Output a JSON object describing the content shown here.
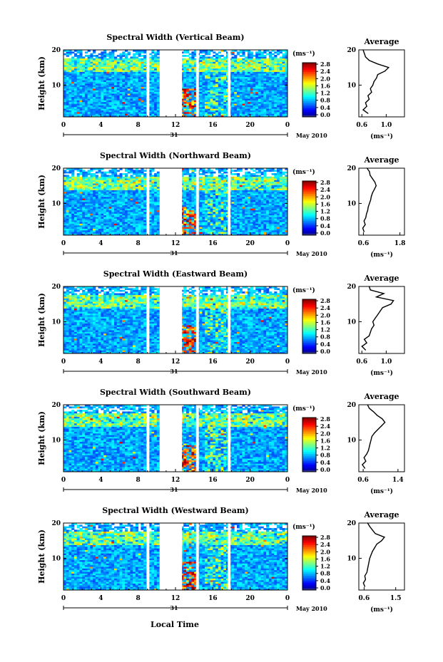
{
  "figure": {
    "xlabel": "Local Time",
    "date_label": "May 2010",
    "day_label": "31",
    "ylabel": "Height (km)",
    "colorbar_unit": "(ms⁻¹)",
    "profile_title": "Average",
    "profile_unit": "(ms⁻¹)"
  },
  "chart_data": [
    {
      "type": "heatmap",
      "title": "Spectral Width (Vertical Beam)",
      "xlabel": "Local Time",
      "ylabel": "Height (km)",
      "x_ticks": [
        "0",
        "4",
        "8",
        "12",
        "16",
        "20",
        "0"
      ],
      "xlim": [
        0,
        24
      ],
      "y_ticks": [
        "10",
        "20"
      ],
      "ylim": [
        1,
        20
      ],
      "colorbar": {
        "unit": "(ms⁻¹)",
        "ticks": [
          "0.0",
          "0.4",
          "0.8",
          "1.2",
          "1.6",
          "2.0",
          "2.4",
          "2.8"
        ],
        "range": [
          0,
          3.0
        ]
      },
      "data_gaps": [
        [
          8.9,
          9.2
        ],
        [
          10.3,
          12.7
        ],
        [
          14.2,
          14.5
        ],
        [
          17.6,
          17.9
        ]
      ],
      "profile": {
        "title": "Average",
        "unit": "(ms⁻¹)",
        "x_ticks": [
          "0.6",
          "1.0"
        ],
        "xlim": [
          0.55,
          1.3
        ],
        "heights": [
          2,
          3,
          4,
          5,
          6,
          7,
          8,
          9,
          10,
          11,
          12,
          13,
          14,
          15,
          16,
          17,
          18,
          19,
          20
        ],
        "values": [
          0.7,
          0.62,
          0.68,
          0.66,
          0.72,
          0.7,
          0.76,
          0.74,
          0.78,
          0.8,
          0.84,
          0.86,
          0.98,
          1.04,
          0.86,
          0.72,
          0.66,
          0.64,
          0.62
        ]
      }
    },
    {
      "type": "heatmap",
      "title": "Spectral Width (Northward Beam)",
      "xlabel": "Local Time",
      "ylabel": "Height (km)",
      "x_ticks": [
        "0",
        "4",
        "8",
        "12",
        "16",
        "20",
        "0"
      ],
      "xlim": [
        0,
        24
      ],
      "y_ticks": [
        "10",
        "20"
      ],
      "ylim": [
        1,
        20
      ],
      "colorbar": {
        "unit": "(ms⁻¹)",
        "ticks": [
          "0.0",
          "0.4",
          "0.8",
          "1.2",
          "1.6",
          "2.0",
          "2.4",
          "2.8"
        ],
        "range": [
          0,
          3.0
        ]
      },
      "data_gaps": [
        [
          8.9,
          9.2
        ],
        [
          10.3,
          12.7
        ],
        [
          14.2,
          14.5
        ],
        [
          17.6,
          17.9
        ]
      ],
      "profile": {
        "title": "Average",
        "unit": "(ms⁻¹)",
        "x_ticks": [
          "0.6",
          "1.8"
        ],
        "xlim": [
          0.45,
          1.95
        ],
        "heights": [
          2,
          3,
          4,
          5,
          6,
          7,
          8,
          9,
          10,
          11,
          12,
          13,
          14,
          15,
          16,
          17,
          18,
          19,
          20
        ],
        "values": [
          0.62,
          0.58,
          0.66,
          0.62,
          0.68,
          0.7,
          0.74,
          0.76,
          0.8,
          0.84,
          0.86,
          0.9,
          0.96,
          1.02,
          0.98,
          0.9,
          0.82,
          0.8,
          0.72
        ]
      }
    },
    {
      "type": "heatmap",
      "title": "Spectral Width (Eastward Beam)",
      "xlabel": "Local Time",
      "ylabel": "Height (km)",
      "x_ticks": [
        "0",
        "4",
        "8",
        "12",
        "16",
        "20",
        "0"
      ],
      "xlim": [
        0,
        24
      ],
      "y_ticks": [
        "10",
        "20"
      ],
      "ylim": [
        1,
        20
      ],
      "colorbar": {
        "unit": "(ms⁻¹)",
        "ticks": [
          "0.0",
          "0.4",
          "0.8",
          "1.2",
          "1.6",
          "2.0",
          "2.4",
          "2.8"
        ],
        "range": [
          0,
          3.0
        ]
      },
      "data_gaps": [
        [
          8.9,
          9.2
        ],
        [
          10.3,
          12.7
        ],
        [
          14.2,
          14.5
        ],
        [
          17.6,
          17.9
        ]
      ],
      "profile": {
        "title": "Average",
        "unit": "(ms⁻¹)",
        "x_ticks": [
          "0.6",
          "1.0"
        ],
        "xlim": [
          0.55,
          1.3
        ],
        "heights": [
          2,
          3,
          4,
          5,
          6,
          7,
          8,
          9,
          10,
          11,
          12,
          13,
          14,
          15,
          16,
          17,
          18,
          19,
          20
        ],
        "values": [
          0.66,
          0.6,
          0.68,
          0.64,
          0.72,
          0.74,
          0.76,
          0.8,
          0.78,
          0.82,
          0.86,
          0.9,
          0.94,
          1.08,
          1.12,
          0.84,
          0.96,
          0.74,
          0.72
        ]
      }
    },
    {
      "type": "heatmap",
      "title": "Spectral Width (Southward Beam)",
      "xlabel": "Local Time",
      "ylabel": "Height (km)",
      "x_ticks": [
        "0",
        "4",
        "8",
        "12",
        "16",
        "20",
        "0"
      ],
      "xlim": [
        0,
        24
      ],
      "y_ticks": [
        "10",
        "20"
      ],
      "ylim": [
        1,
        20
      ],
      "colorbar": {
        "unit": "(ms⁻¹)",
        "ticks": [
          "0.0",
          "0.4",
          "0.8",
          "1.2",
          "1.6",
          "2.0",
          "2.4",
          "2.8"
        ],
        "range": [
          0,
          3.0
        ]
      },
      "data_gaps": [
        [
          8.9,
          9.2
        ],
        [
          10.3,
          12.7
        ],
        [
          14.2,
          14.5
        ],
        [
          17.6,
          17.9
        ]
      ],
      "profile": {
        "title": "Average",
        "unit": "(ms⁻¹)",
        "x_ticks": [
          "0.6",
          "1.4"
        ],
        "xlim": [
          0.5,
          1.55
        ],
        "heights": [
          2,
          3,
          4,
          5,
          6,
          7,
          8,
          9,
          10,
          11,
          12,
          13,
          14,
          15,
          16,
          17,
          18,
          19,
          20
        ],
        "values": [
          0.64,
          0.58,
          0.66,
          0.62,
          0.68,
          0.72,
          0.74,
          0.76,
          0.78,
          0.8,
          0.86,
          0.94,
          1.02,
          1.1,
          1.04,
          0.92,
          0.84,
          0.74,
          0.7
        ]
      }
    },
    {
      "type": "heatmap",
      "title": "Spectral Width (Westward Beam)",
      "xlabel": "Local Time",
      "ylabel": "Height (km)",
      "x_ticks": [
        "0",
        "4",
        "8",
        "12",
        "16",
        "20",
        "0"
      ],
      "xlim": [
        0,
        24
      ],
      "y_ticks": [
        "10",
        "20"
      ],
      "ylim": [
        1,
        20
      ],
      "colorbar": {
        "unit": "(ms⁻¹)",
        "ticks": [
          "0.0",
          "0.4",
          "0.8",
          "1.2",
          "1.6",
          "2.0",
          "2.4",
          "2.8"
        ],
        "range": [
          0,
          3.0
        ]
      },
      "data_gaps": [
        [
          8.9,
          9.2
        ],
        [
          10.3,
          12.7
        ],
        [
          14.2,
          14.5
        ],
        [
          17.6,
          17.9
        ]
      ],
      "profile": {
        "title": "Average",
        "unit": "(ms⁻¹)",
        "x_ticks": [
          "0.6",
          "1.5"
        ],
        "xlim": [
          0.45,
          1.75
        ],
        "heights": [
          2,
          3,
          4,
          5,
          6,
          7,
          8,
          9,
          10,
          11,
          12,
          13,
          14,
          15,
          16,
          17,
          18,
          19,
          20
        ],
        "values": [
          0.62,
          0.58,
          0.64,
          0.62,
          0.68,
          0.7,
          0.72,
          0.74,
          0.76,
          0.8,
          0.84,
          0.9,
          0.96,
          1.1,
          1.18,
          0.92,
          0.84,
          0.76,
          0.7
        ]
      }
    }
  ]
}
